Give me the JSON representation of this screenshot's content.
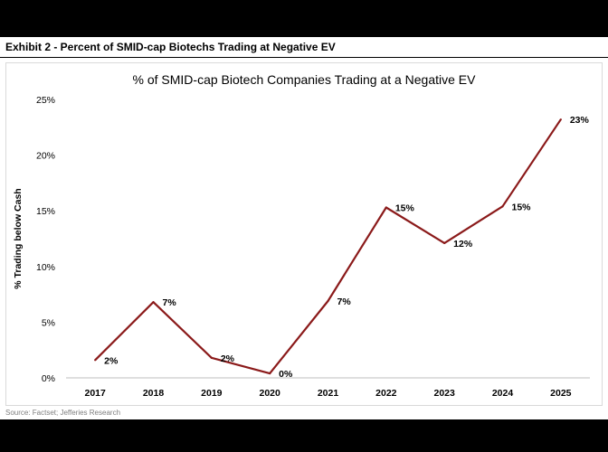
{
  "header": {
    "exhibit_title": "Exhibit 2 - Percent of SMID-cap Biotechs Trading at Negative EV"
  },
  "footer": {
    "source": "Source: Factset; Jefferies Research"
  },
  "colors": {
    "line": "#8b1a1a",
    "text": "#000000",
    "source_text": "#7f7f7f"
  },
  "chart_data": {
    "type": "line",
    "title": "% of SMID-cap Biotech Companies Trading at a Negative EV",
    "xlabel": "",
    "ylabel": "% Trading below Cash",
    "categories": [
      "2017",
      "2018",
      "2019",
      "2020",
      "2021",
      "2022",
      "2023",
      "2024",
      "2025"
    ],
    "series": [
      {
        "values": [
          1.6,
          6.8,
          1.8,
          0.4,
          6.9,
          15.3,
          12.1,
          15.4,
          23.2
        ],
        "labels": [
          "2%",
          "7%",
          "2%",
          "0%",
          "7%",
          "15%",
          "12%",
          "15%",
          "23%"
        ]
      }
    ],
    "ylim": [
      0,
      25
    ],
    "yticks": [
      "0%",
      "5%",
      "10%",
      "15%",
      "20%",
      "25%"
    ],
    "grid": false,
    "legend": "none"
  }
}
